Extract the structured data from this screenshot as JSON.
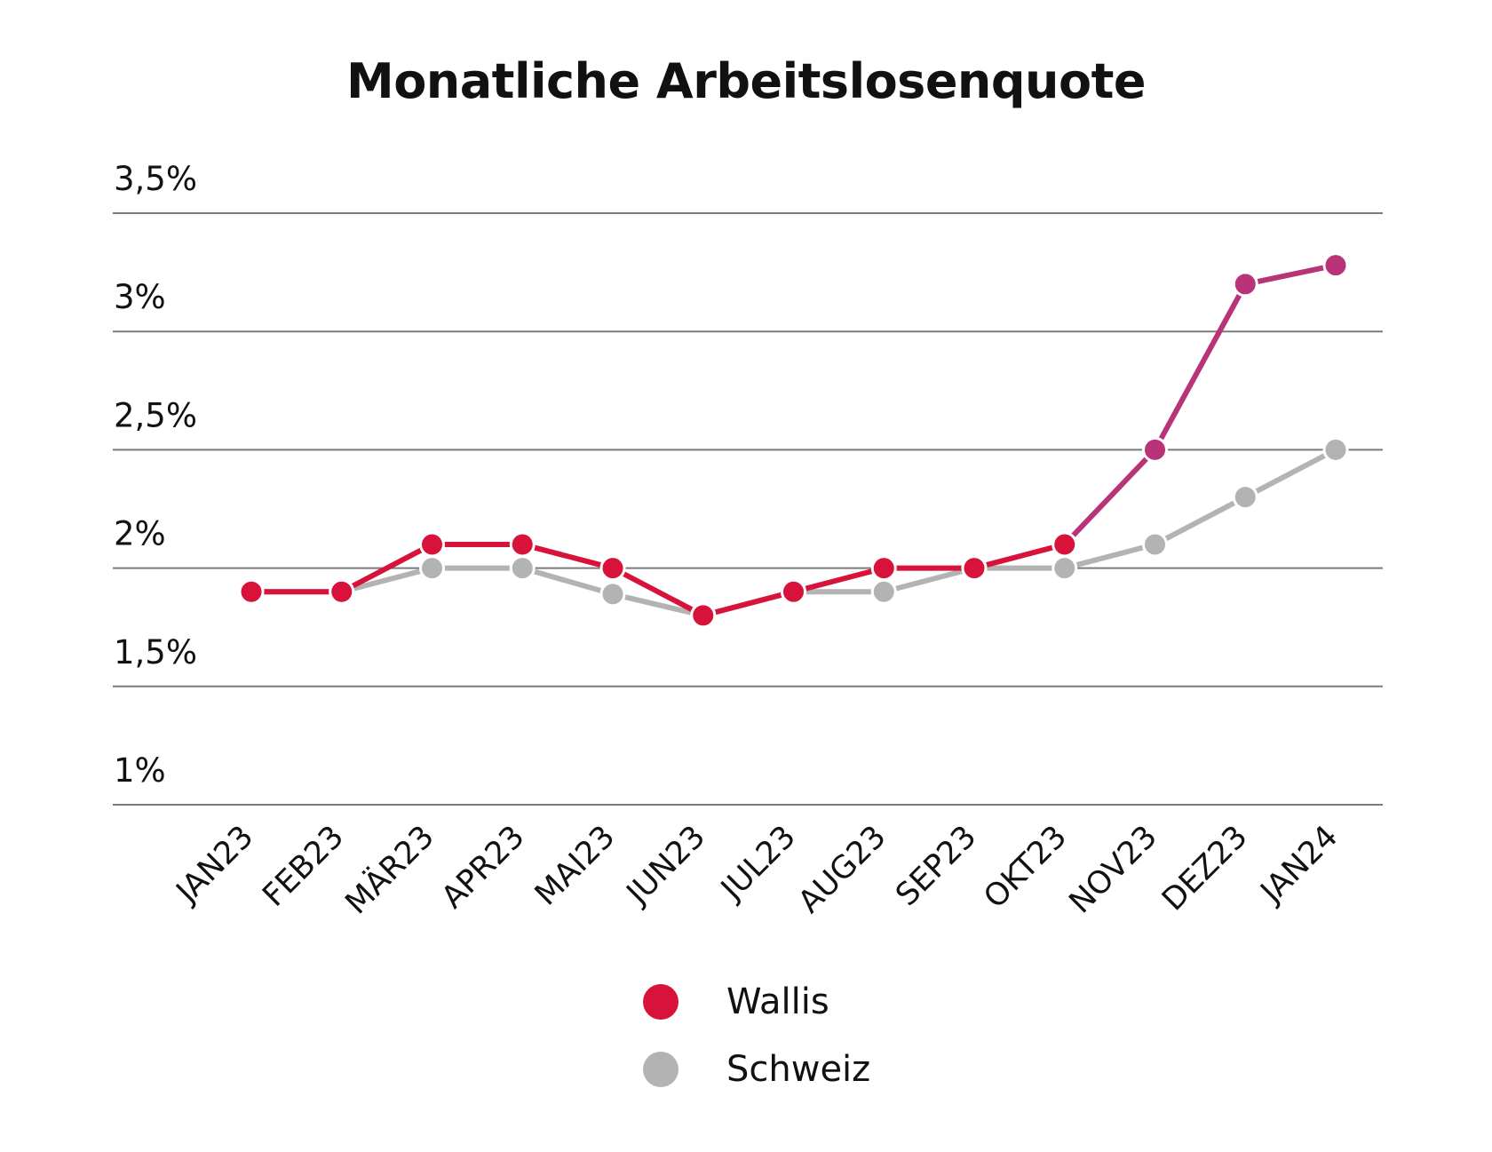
{
  "chart_data": {
    "type": "line",
    "title": "Monatliche Arbeitslosenquote",
    "categories": [
      "JAN23",
      "FEB23",
      "MÄR23",
      "APR23",
      "MAI23",
      "JUN23",
      "JUL23",
      "AUG23",
      "SEP23",
      "OKT23",
      "NOV23",
      "DEZ23",
      "JAN24"
    ],
    "y_ticks": [
      {
        "value": 1.0,
        "label": "1%"
      },
      {
        "value": 1.5,
        "label": "1,5%"
      },
      {
        "value": 2.0,
        "label": "2%"
      },
      {
        "value": 2.5,
        "label": "2,5%"
      },
      {
        "value": 3.0,
        "label": "3%"
      },
      {
        "value": 3.5,
        "label": "3,5%"
      }
    ],
    "ylim": [
      1.0,
      3.5
    ],
    "grid": true,
    "legend_position": "bottom-center",
    "series": [
      {
        "name": "Schweiz",
        "color": "#b3b3b3",
        "values": [
          1.9,
          1.9,
          2.0,
          2.0,
          1.89,
          1.8,
          1.9,
          1.9,
          2.0,
          2.0,
          2.1,
          2.3,
          2.5
        ]
      },
      {
        "name": "Wallis",
        "color": "#d7123b",
        "late_color": "#b83378",
        "values": [
          1.9,
          1.9,
          2.1,
          2.1,
          2.0,
          1.8,
          1.9,
          2.0,
          2.0,
          2.1,
          2.5,
          3.2,
          3.28
        ]
      }
    ]
  },
  "legend": [
    {
      "label": "Wallis",
      "color": "#d7123b"
    },
    {
      "label": "Schweiz",
      "color": "#b3b3b3"
    }
  ]
}
